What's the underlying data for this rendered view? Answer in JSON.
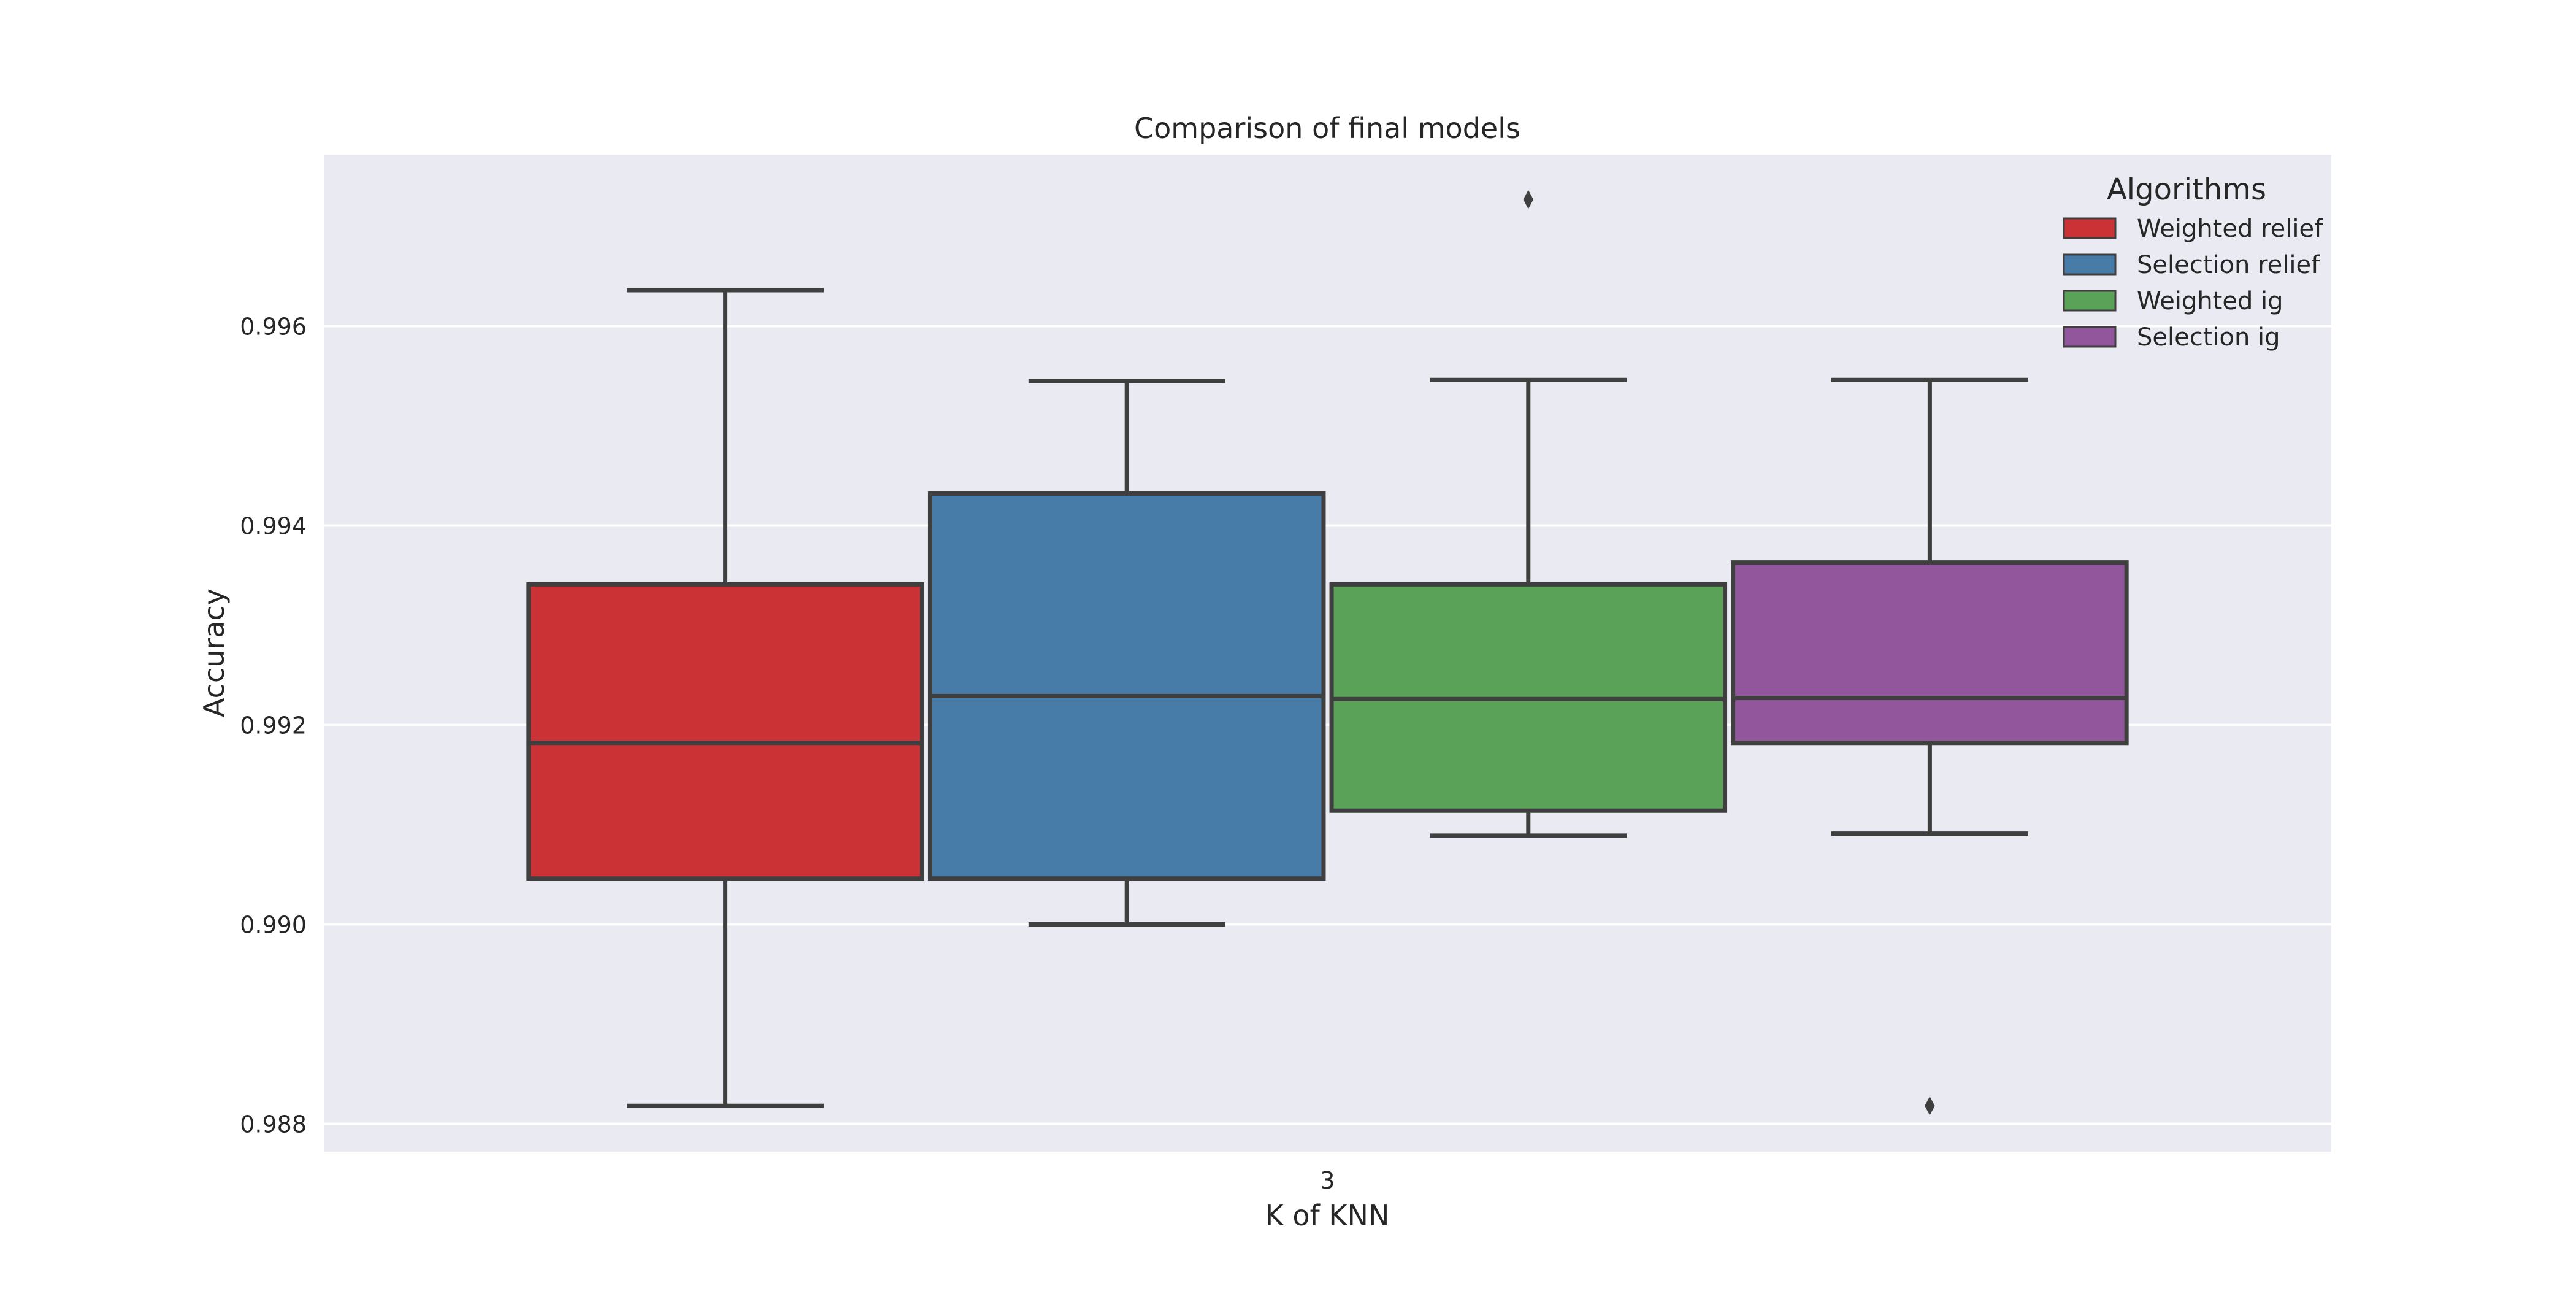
{
  "chart_data": {
    "type": "box",
    "title": "Comparison of final models",
    "xlabel": "K of KNN",
    "ylabel": "Accuracy",
    "categories": [
      "3"
    ],
    "ylim": [
      0.98772,
      0.99772
    ],
    "yticks": [
      0.988,
      0.99,
      0.992,
      0.994,
      0.996
    ],
    "ytick_labels": [
      "0.988",
      "0.990",
      "0.992",
      "0.994",
      "0.996"
    ],
    "grid": true,
    "legend": {
      "title": "Algorithms",
      "position": "top-right"
    },
    "series": [
      {
        "name": "Weighted relief",
        "color": "#ca3235",
        "whisker_low": 0.98818,
        "q1": 0.99046,
        "median": 0.99182,
        "q3": 0.99341,
        "whisker_high": 0.99636,
        "outliers": []
      },
      {
        "name": "Selection relief",
        "color": "#477ca8",
        "whisker_low": 0.99,
        "q1": 0.99046,
        "median": 0.99229,
        "q3": 0.99432,
        "whisker_high": 0.99545,
        "outliers": []
      },
      {
        "name": "Weighted ig",
        "color": "#59a257",
        "whisker_low": 0.99089,
        "q1": 0.99114,
        "median": 0.99226,
        "q3": 0.99341,
        "whisker_high": 0.99546,
        "outliers": [
          0.99727
        ]
      },
      {
        "name": "Selection ig",
        "color": "#91569b",
        "whisker_low": 0.99091,
        "q1": 0.99182,
        "median": 0.99227,
        "q3": 0.99363,
        "whisker_high": 0.99546,
        "outliers": [
          0.98818
        ]
      }
    ]
  }
}
